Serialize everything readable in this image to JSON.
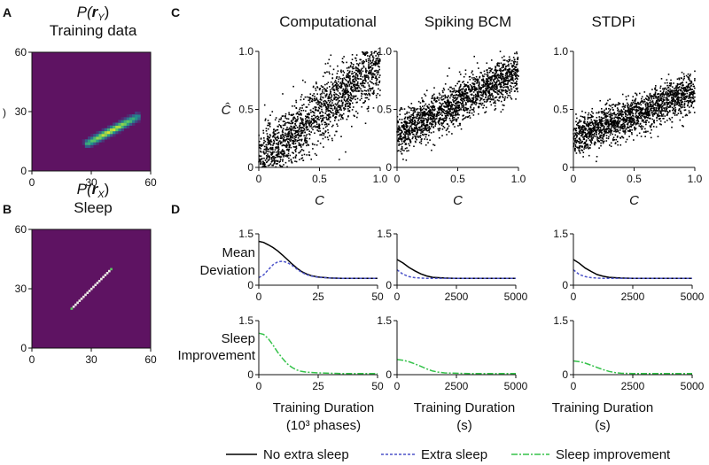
{
  "panels": {
    "A": "A",
    "B": "B",
    "C": "C",
    "D": "D"
  },
  "heatmaps": {
    "A": {
      "title_pre": "P(",
      "title_var": "r",
      "title_sub": "Y",
      "title_post": ")",
      "subtitle": "Training data",
      "ylabel_fragment": ")",
      "xticks": [
        "0",
        "30",
        "60"
      ],
      "yticks": [
        "60",
        "30",
        "0"
      ]
    },
    "B": {
      "title_pre": "P(",
      "title_var": "r",
      "title_sub": "X",
      "title_post": ")",
      "subtitle": "Sleep",
      "xticks": [
        "0",
        "30",
        "60"
      ],
      "yticks": [
        "60",
        "30",
        "0"
      ]
    }
  },
  "columns": [
    {
      "title": "Computational",
      "xticks_D": [
        "0",
        "25",
        "50"
      ],
      "xlabel": "Training Duration",
      "xlabel2": "(10³ phases)"
    },
    {
      "title": "Spiking BCM",
      "xticks_D": [
        "0",
        "2500",
        "5000"
      ],
      "xlabel": "Training Duration",
      "xlabel2": "(s)"
    },
    {
      "title": "STDPi",
      "xticks_D": [
        "0",
        "2500",
        "5000"
      ],
      "xlabel": "Training Duration",
      "xlabel2": "(s)"
    }
  ],
  "scatter_axes": {
    "xlabel": "C",
    "ylabel": "Ĉ",
    "xticks": [
      "0",
      "0.5",
      "1.0"
    ],
    "yticks": [
      "1.0",
      "0.5",
      "0"
    ]
  },
  "line_axes": {
    "row1_label": [
      "Mean",
      "Deviation"
    ],
    "row2_label": [
      "Sleep",
      "Improvement"
    ],
    "yticks": [
      "1.5",
      "0"
    ]
  },
  "legend": {
    "no_extra": "No extra sleep",
    "extra": "Extra sleep",
    "improvement": "Sleep improvement"
  },
  "colors": {
    "background": "#5e1362",
    "no_extra": "#000000",
    "extra": "#4b52c9",
    "improvement": "#35c24a",
    "dots": "#000000"
  },
  "chart_data": [
    {
      "type": "heatmap",
      "title": "P(r_Y) Training data",
      "x_range": [
        0,
        60
      ],
      "y_range": [
        0,
        60
      ],
      "ridge": {
        "x_start": 27,
        "x_end": 53,
        "y_start": 13,
        "y_end": 27
      }
    },
    {
      "type": "heatmap",
      "title": "P(r_X) Sleep",
      "x_range": [
        0,
        60
      ],
      "y_range": [
        0,
        60
      ],
      "diagonal": {
        "start": 20,
        "end": 40
      }
    },
    {
      "type": "scatter",
      "title": "Computational",
      "xlabel": "C",
      "ylabel": "Ĉ",
      "xlim": [
        0,
        1
      ],
      "ylim": [
        0,
        1
      ],
      "trend": {
        "slope": 0.85,
        "intercept": 0.05,
        "noise_sd": 0.13
      },
      "n_points": 1800
    },
    {
      "type": "scatter",
      "title": "Spiking BCM",
      "xlabel": "C",
      "ylabel": "Ĉ",
      "xlim": [
        0,
        1
      ],
      "ylim": [
        0,
        1
      ],
      "trend": {
        "slope": 0.55,
        "intercept": 0.28,
        "noise_sd": 0.09
      },
      "n_points": 1800
    },
    {
      "type": "scatter",
      "title": "STDPi",
      "xlabel": "C",
      "ylabel": "Ĉ",
      "xlim": [
        0,
        1
      ],
      "ylim": [
        0,
        1
      ],
      "trend": {
        "slope": 0.4,
        "intercept": 0.25,
        "noise_sd": 0.08
      },
      "n_points": 1800
    },
    {
      "type": "line",
      "title": "Mean Deviation (Computational)",
      "x": [
        0,
        2,
        4,
        6,
        8,
        10,
        12,
        14,
        16,
        18,
        20,
        22,
        25,
        30,
        35,
        40,
        45,
        50
      ],
      "xlim": [
        0,
        50
      ],
      "ylim": [
        0,
        1.5
      ],
      "series": [
        {
          "name": "No extra sleep",
          "values": [
            1.28,
            1.25,
            1.18,
            1.1,
            1.0,
            0.88,
            0.75,
            0.62,
            0.5,
            0.4,
            0.33,
            0.28,
            0.24,
            0.21,
            0.2,
            0.2,
            0.2,
            0.2
          ]
        },
        {
          "name": "Extra sleep",
          "values": [
            0.22,
            0.3,
            0.45,
            0.6,
            0.68,
            0.7,
            0.66,
            0.58,
            0.47,
            0.38,
            0.31,
            0.27,
            0.23,
            0.21,
            0.2,
            0.2,
            0.2,
            0.2
          ]
        }
      ]
    },
    {
      "type": "line",
      "title": "Mean Deviation (Spiking BCM)",
      "x": [
        0,
        250,
        500,
        750,
        1000,
        1250,
        1500,
        2000,
        2500,
        3000,
        3500,
        4000,
        4500,
        5000
      ],
      "xlim": [
        0,
        5000
      ],
      "ylim": [
        0,
        1.5
      ],
      "series": [
        {
          "name": "No extra sleep",
          "values": [
            0.75,
            0.65,
            0.52,
            0.42,
            0.33,
            0.27,
            0.23,
            0.21,
            0.2,
            0.2,
            0.2,
            0.2,
            0.2,
            0.2
          ]
        },
        {
          "name": "Extra sleep",
          "values": [
            0.45,
            0.32,
            0.25,
            0.22,
            0.21,
            0.2,
            0.2,
            0.2,
            0.2,
            0.2,
            0.2,
            0.2,
            0.2,
            0.2
          ]
        }
      ]
    },
    {
      "type": "line",
      "title": "Mean Deviation (STDPi)",
      "x": [
        0,
        250,
        500,
        750,
        1000,
        1250,
        1500,
        2000,
        2500,
        3000,
        3500,
        4000,
        4500,
        5000
      ],
      "xlim": [
        0,
        5000
      ],
      "ylim": [
        0,
        1.5
      ],
      "series": [
        {
          "name": "No extra sleep",
          "values": [
            0.75,
            0.64,
            0.5,
            0.4,
            0.31,
            0.26,
            0.23,
            0.21,
            0.2,
            0.2,
            0.2,
            0.2,
            0.2,
            0.2
          ]
        },
        {
          "name": "Extra sleep",
          "values": [
            0.45,
            0.31,
            0.25,
            0.22,
            0.21,
            0.2,
            0.2,
            0.2,
            0.2,
            0.2,
            0.2,
            0.2,
            0.2,
            0.2
          ]
        }
      ]
    },
    {
      "type": "line",
      "title": "Sleep Improvement (Computational)",
      "x": [
        0,
        2,
        4,
        6,
        8,
        10,
        12,
        14,
        16,
        18,
        20,
        25,
        30,
        35,
        40,
        45,
        50
      ],
      "xlim": [
        0,
        50
      ],
      "ylim": [
        0,
        1.5
      ],
      "series": [
        {
          "name": "Sleep improvement",
          "values": [
            1.15,
            1.12,
            1.0,
            0.82,
            0.62,
            0.45,
            0.3,
            0.2,
            0.13,
            0.09,
            0.07,
            0.05,
            0.04,
            0.03,
            0.03,
            0.03,
            0.03
          ]
        }
      ]
    },
    {
      "type": "line",
      "title": "Sleep Improvement (Spiking BCM)",
      "x": [
        0,
        250,
        500,
        750,
        1000,
        1250,
        1500,
        1750,
        2000,
        2500,
        3000,
        3500,
        4000,
        4500,
        5000
      ],
      "xlim": [
        0,
        5000
      ],
      "ylim": [
        0,
        1.5
      ],
      "series": [
        {
          "name": "Sleep improvement",
          "values": [
            0.42,
            0.4,
            0.36,
            0.3,
            0.23,
            0.16,
            0.1,
            0.07,
            0.05,
            0.04,
            0.03,
            0.03,
            0.03,
            0.03,
            0.03
          ]
        }
      ]
    },
    {
      "type": "line",
      "title": "Sleep Improvement (STDPi)",
      "x": [
        0,
        250,
        500,
        750,
        1000,
        1250,
        1500,
        1750,
        2000,
        2500,
        3000,
        3500,
        4000,
        4500,
        5000
      ],
      "xlim": [
        0,
        5000
      ],
      "ylim": [
        0,
        1.5
      ],
      "series": [
        {
          "name": "Sleep improvement",
          "values": [
            0.38,
            0.36,
            0.32,
            0.26,
            0.2,
            0.14,
            0.09,
            0.06,
            0.04,
            0.03,
            0.03,
            0.03,
            0.03,
            0.03,
            0.03
          ]
        }
      ]
    }
  ]
}
